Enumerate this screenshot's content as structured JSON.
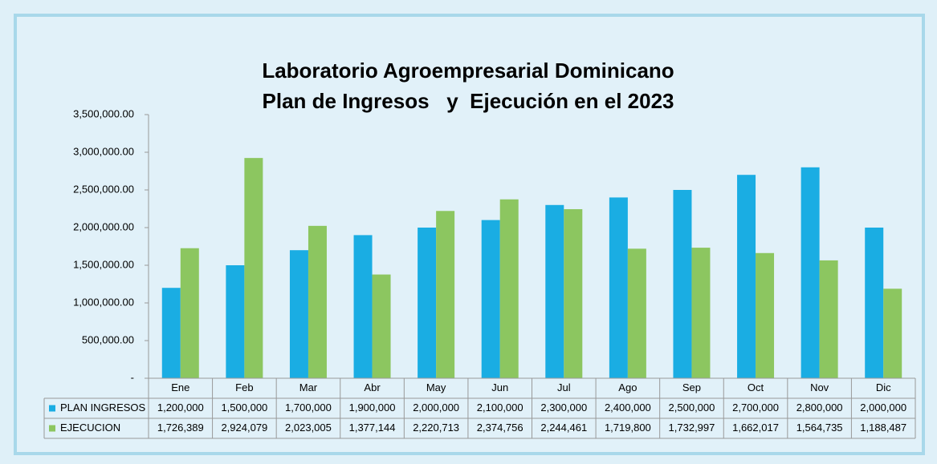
{
  "chart_data": {
    "type": "bar",
    "title": "Laboratorio Agroempresarial Dominicano",
    "subtitle": "Plan de Ingresos   y  Ejecución en el 2023",
    "categories": [
      "Ene",
      "Feb",
      "Mar",
      "Abr",
      "May",
      "Jun",
      "Jul",
      "Ago",
      "Sep",
      "Oct",
      "Nov",
      "Dic"
    ],
    "series": [
      {
        "name": "PLAN INGRESOS",
        "color": "#1aade3",
        "values": [
          1200000,
          1500000,
          1700000,
          1900000,
          2000000,
          2100000,
          2300000,
          2400000,
          2500000,
          2700000,
          2800000,
          2000000
        ],
        "value_labels": [
          "1,200,000",
          "1,500,000",
          "1,700,000",
          "1,900,000",
          "2,000,000",
          "2,100,000",
          "2,300,000",
          "2,400,000",
          "2,500,000",
          "2,700,000",
          "2,800,000",
          "2,000,000"
        ]
      },
      {
        "name": "EJECUCION",
        "color": "#8cc660",
        "values": [
          1726389,
          2924079,
          2023005,
          1377144,
          2220713,
          2374756,
          2244461,
          1719800,
          1732997,
          1662017,
          1564735,
          1188487
        ],
        "value_labels": [
          "1,726,389",
          "2,924,079",
          "2,023,005",
          "1,377,144",
          "2,220,713",
          "2,374,756",
          "2,244,461",
          "1,719,800",
          "1,732,997",
          "1,662,017",
          "1,564,735",
          "1,188,487"
        ]
      }
    ],
    "ylim": [
      0,
      3500000
    ],
    "yticks": [
      {
        "value": 0,
        "label": "-"
      },
      {
        "value": 500000,
        "label": "500,000.00"
      },
      {
        "value": 1000000,
        "label": "1,000,000.00"
      },
      {
        "value": 1500000,
        "label": "1,500,000.00"
      },
      {
        "value": 2000000,
        "label": "2,000,000.00"
      },
      {
        "value": 2500000,
        "label": "2,500,000.00"
      },
      {
        "value": 3000000,
        "label": "3,000,000.00"
      },
      {
        "value": 3500000,
        "label": "3,500,000.00"
      }
    ],
    "grid": false
  }
}
